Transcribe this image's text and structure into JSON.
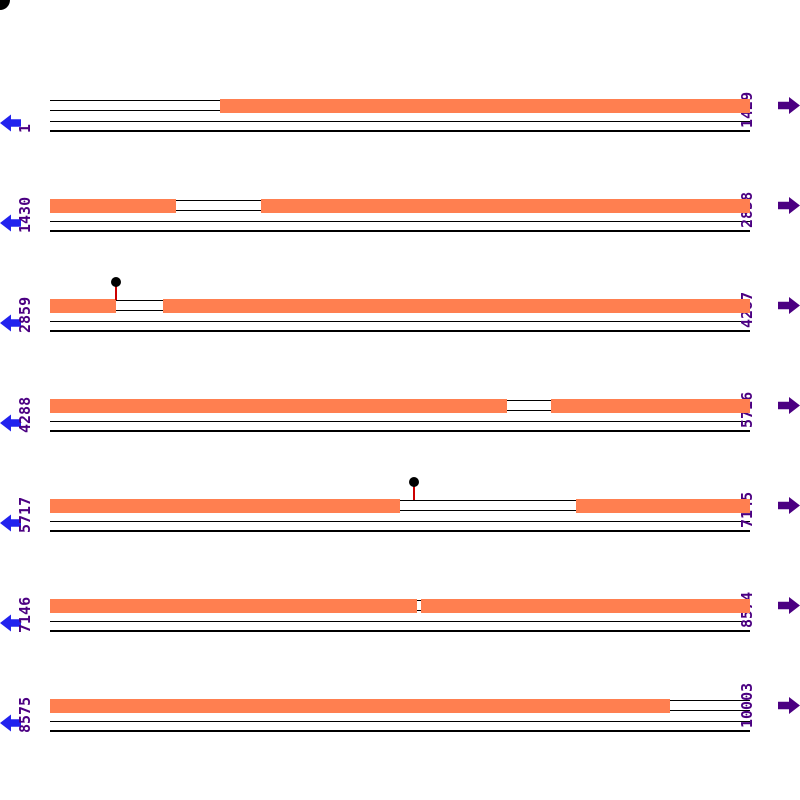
{
  "diagram": {
    "type": "linear-sequence-map",
    "sequence_length": 10003,
    "bases_per_row": 1429,
    "row_count": 7
  },
  "colors": {
    "feature_fill": "#FF7F50",
    "position_label": "#4B0082",
    "left_arrow": "#2222EE",
    "right_arrow": "#4B0082",
    "marker_stem": "#CC0000",
    "marker_dot": "#000000",
    "track_line": "#000000"
  },
  "rows": [
    {
      "start": 1,
      "end": 1429,
      "start_label": "1",
      "end_label": "1429",
      "features": [
        {
          "from": 348,
          "to": 1429
        }
      ],
      "markers": []
    },
    {
      "start": 1430,
      "end": 2858,
      "start_label": "1430",
      "end_label": "2858",
      "features": [
        {
          "from": 1430,
          "to": 1687
        },
        {
          "from": 1861,
          "to": 2858
        }
      ],
      "markers": []
    },
    {
      "start": 2859,
      "end": 4287,
      "start_label": "2859",
      "end_label": "4287",
      "features": [
        {
          "from": 2859,
          "to": 2994
        },
        {
          "from": 3090,
          "to": 4287
        }
      ],
      "markers": [
        {
          "pos": 2994
        }
      ]
    },
    {
      "start": 4288,
      "end": 5716,
      "start_label": "4288",
      "end_label": "5716",
      "features": [
        {
          "from": 4288,
          "to": 5221
        },
        {
          "from": 5309,
          "to": 5716
        }
      ],
      "markers": []
    },
    {
      "start": 5717,
      "end": 7145,
      "start_label": "5717",
      "end_label": "7145",
      "features": [
        {
          "from": 5717,
          "to": 6431
        },
        {
          "from": 6789,
          "to": 7145
        }
      ],
      "markers": [
        {
          "pos": 6460
        }
      ]
    },
    {
      "start": 7146,
      "end": 8574,
      "start_label": "7146",
      "end_label": "8574",
      "features": [
        {
          "from": 7146,
          "to": 7895
        },
        {
          "from": 7903,
          "to": 8574
        }
      ],
      "markers": []
    },
    {
      "start": 8575,
      "end": 10003,
      "start_label": "8575",
      "end_label": "10003",
      "features": [
        {
          "from": 8575,
          "to": 9839
        }
      ],
      "markers": []
    }
  ]
}
